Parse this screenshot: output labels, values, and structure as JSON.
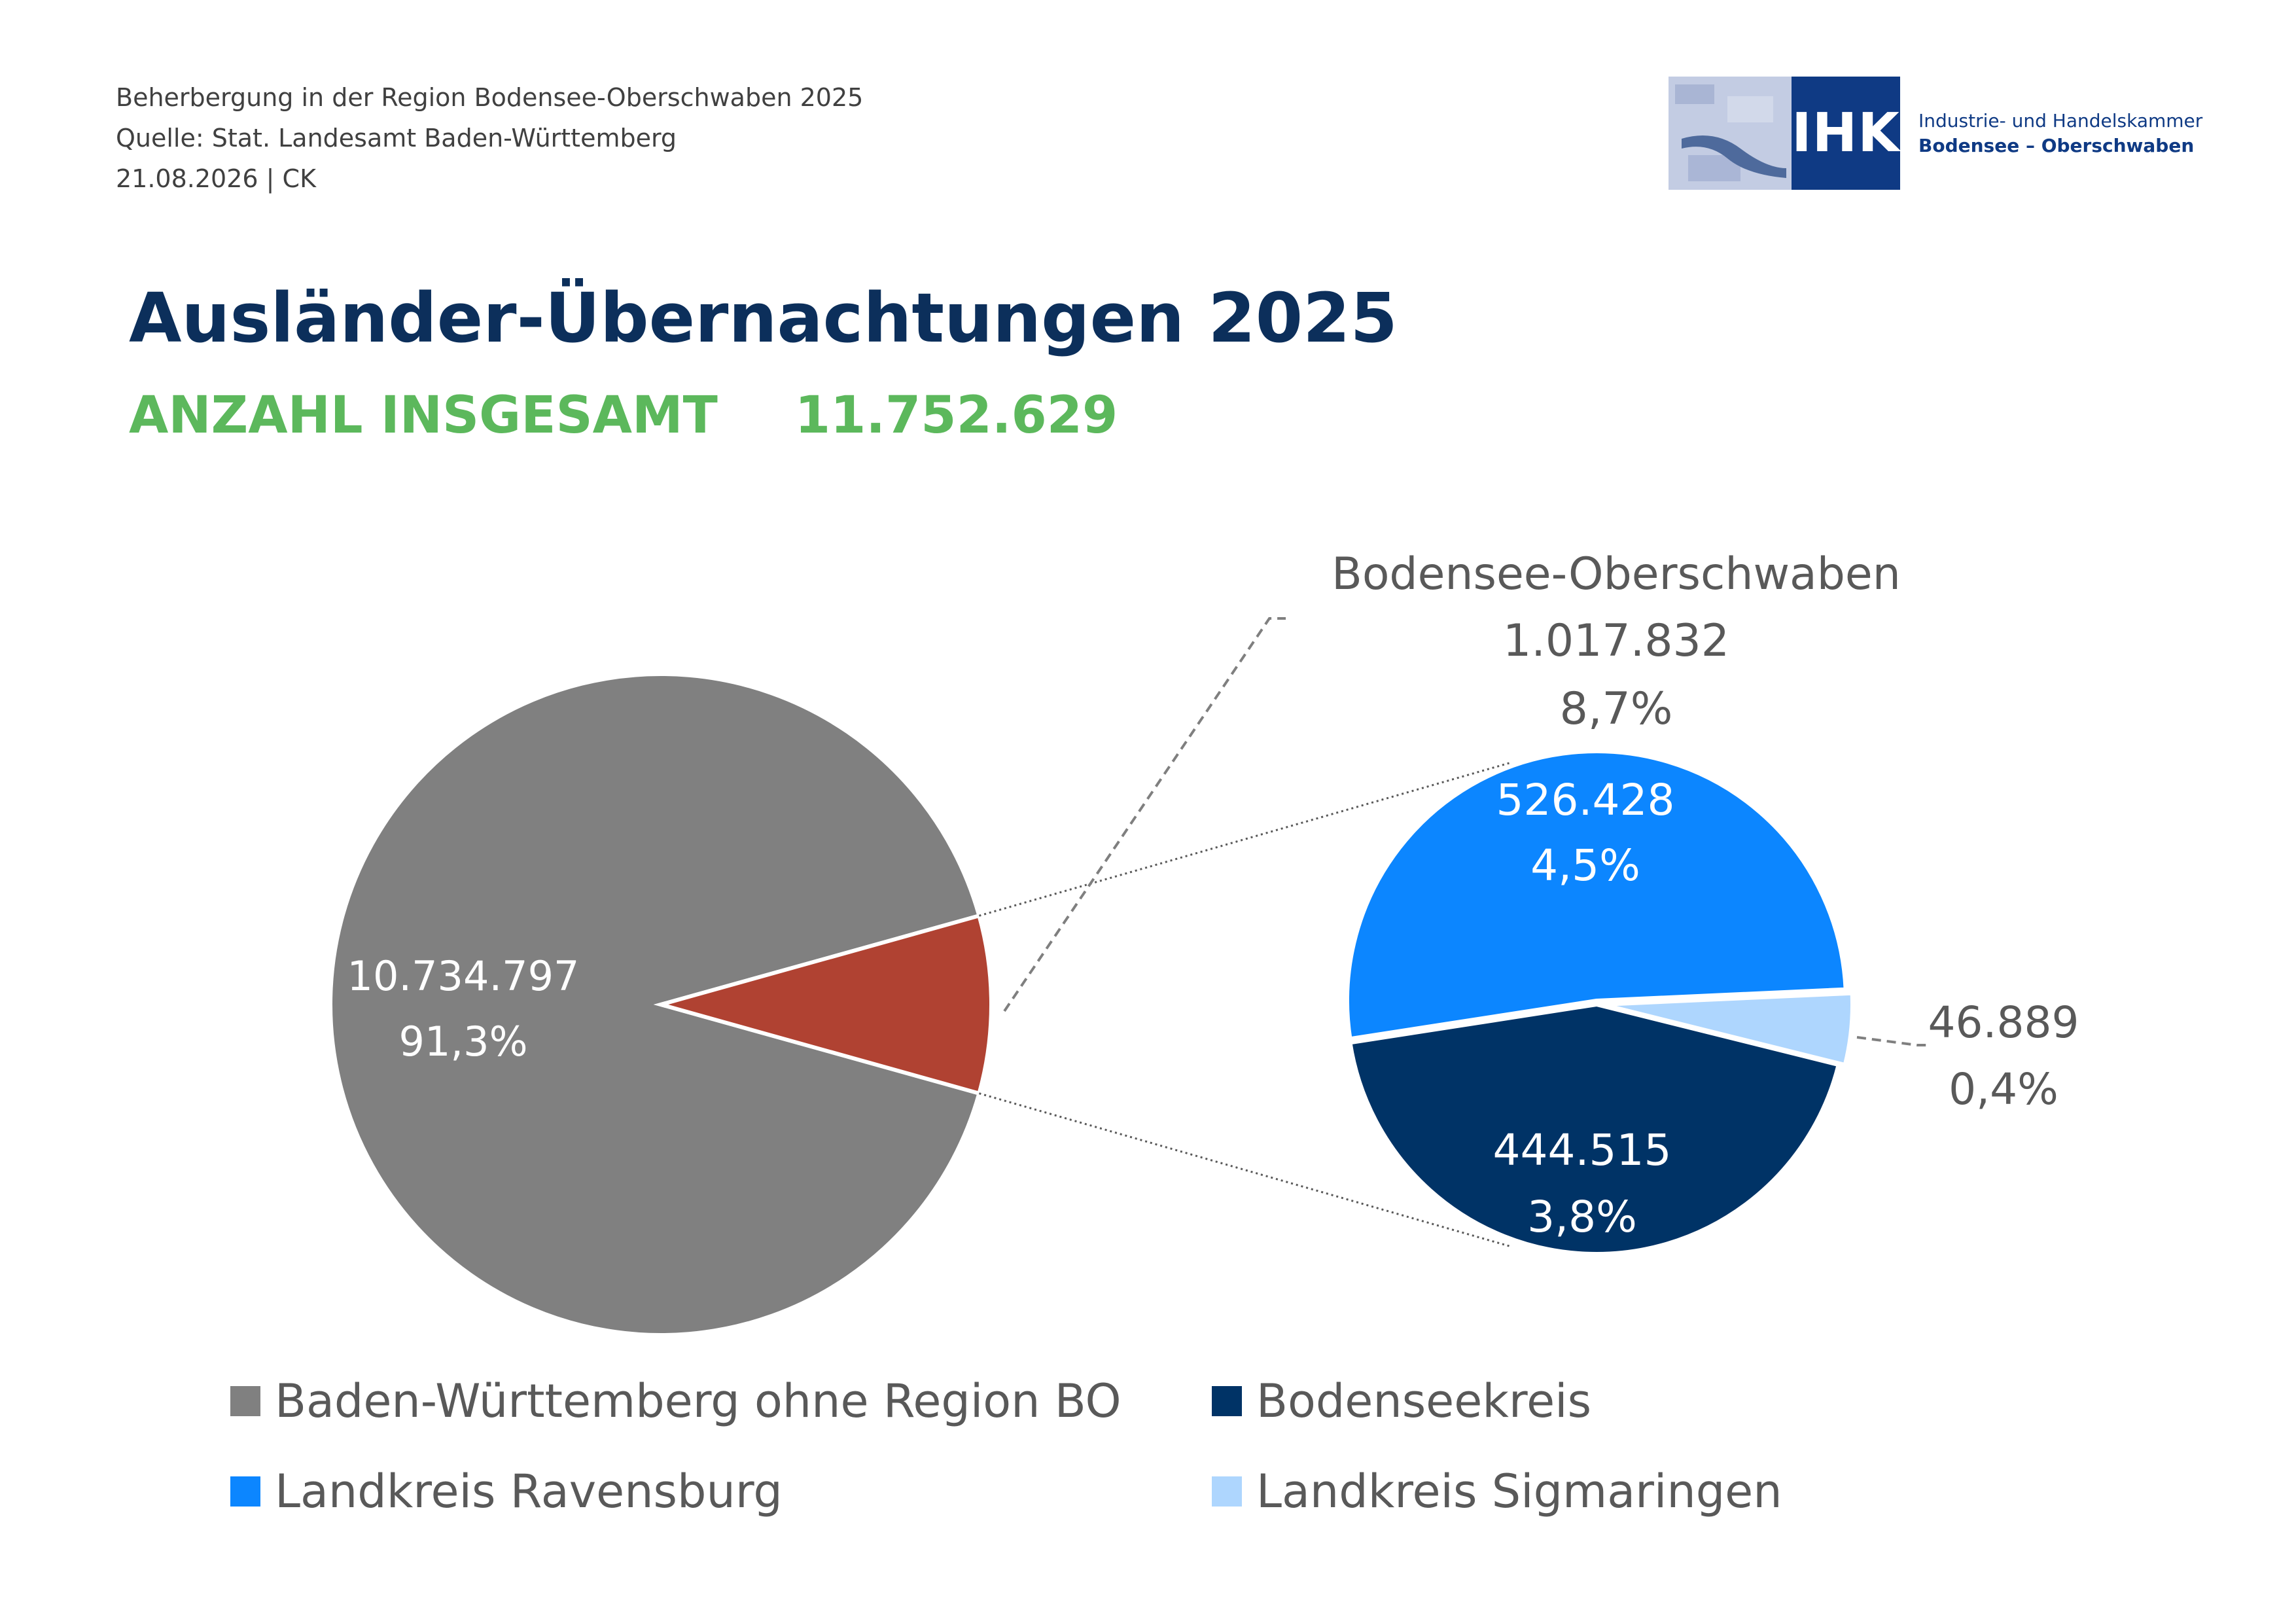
{
  "header": {
    "line1": "Beherbergung in der Region Bodensee-Oberschwaben 2025",
    "line2": "Quelle: Stat. Landesamt Baden-Württemberg",
    "line3": "21.08.2026 | CK"
  },
  "logo": {
    "abbr": "IHK",
    "line1": "Industrie- und Handelskammer",
    "line2": "Bodensee – Oberschwaben"
  },
  "heading": {
    "title": "Ausländer-Übernachtungen 2025",
    "total_label": "ANZAHL INSGESAMT",
    "total_value": "11.752.629"
  },
  "chart_data": {
    "type": "pie",
    "subtype": "pie-of-pie",
    "total": 11752629,
    "main_pie": [
      {
        "name": "Baden-Württemberg ohne Region BO",
        "value": 10734797,
        "value_label": "10.734.797",
        "pct_label": "91,3%",
        "color": "#808080"
      },
      {
        "name": "Bodensee-Oberschwaben",
        "value": 1017832,
        "value_label": "1.017.832",
        "pct_label": "8,7%",
        "color": "#b04232"
      }
    ],
    "secondary_pie": [
      {
        "name": "Landkreis Ravensburg",
        "value": 526428,
        "value_label": "526.428",
        "pct_label": "4,5%",
        "color": "#0c86ff"
      },
      {
        "name": "Landkreis Sigmaringen",
        "value": 46889,
        "value_label": "46.889",
        "pct_label": "0,4%",
        "color": "#aed6fe"
      },
      {
        "name": "Bodenseekreis",
        "value": 444515,
        "value_label": "444.515",
        "pct_label": "3,8%",
        "color": "#003366"
      }
    ],
    "legend": [
      {
        "label": "Baden-Württemberg ohne Region BO",
        "color": "#808080"
      },
      {
        "label": "Bodenseekreis",
        "color": "#003366"
      },
      {
        "label": "Landkreis Ravensburg",
        "color": "#0c86ff"
      },
      {
        "label": "Landkreis Sigmaringen",
        "color": "#aed6fe"
      }
    ]
  }
}
